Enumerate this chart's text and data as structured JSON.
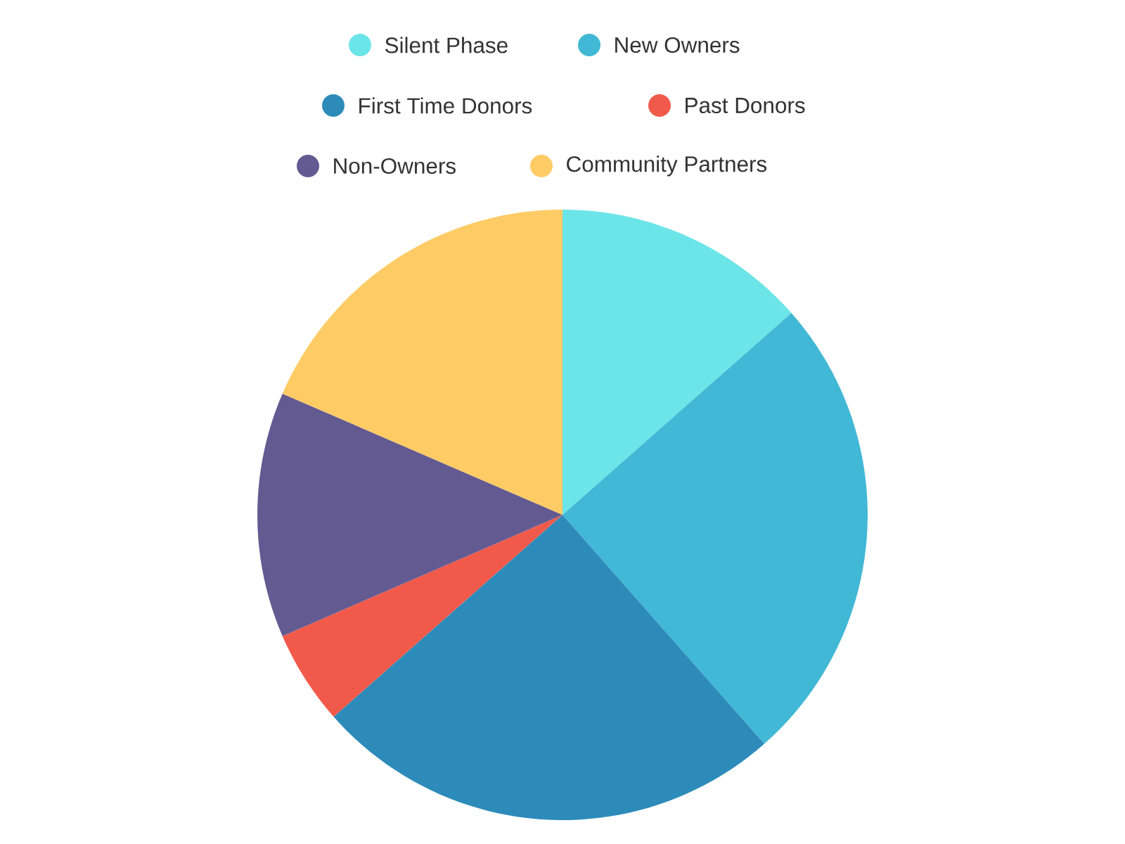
{
  "chart_data": {
    "type": "pie",
    "categories": [
      "Silent Phase",
      "New Owners",
      "First Time Donors",
      "Past Donors",
      "Non-Owners",
      "Community Partners"
    ],
    "values": [
      13.5,
      25,
      25,
      5,
      13,
      18.5
    ],
    "colors": [
      "#6ce5e8",
      "#41b8d5",
      "#2d8bba",
      "#f15a4a",
      "#635a92",
      "#ffcb65"
    ],
    "legend": "top"
  }
}
